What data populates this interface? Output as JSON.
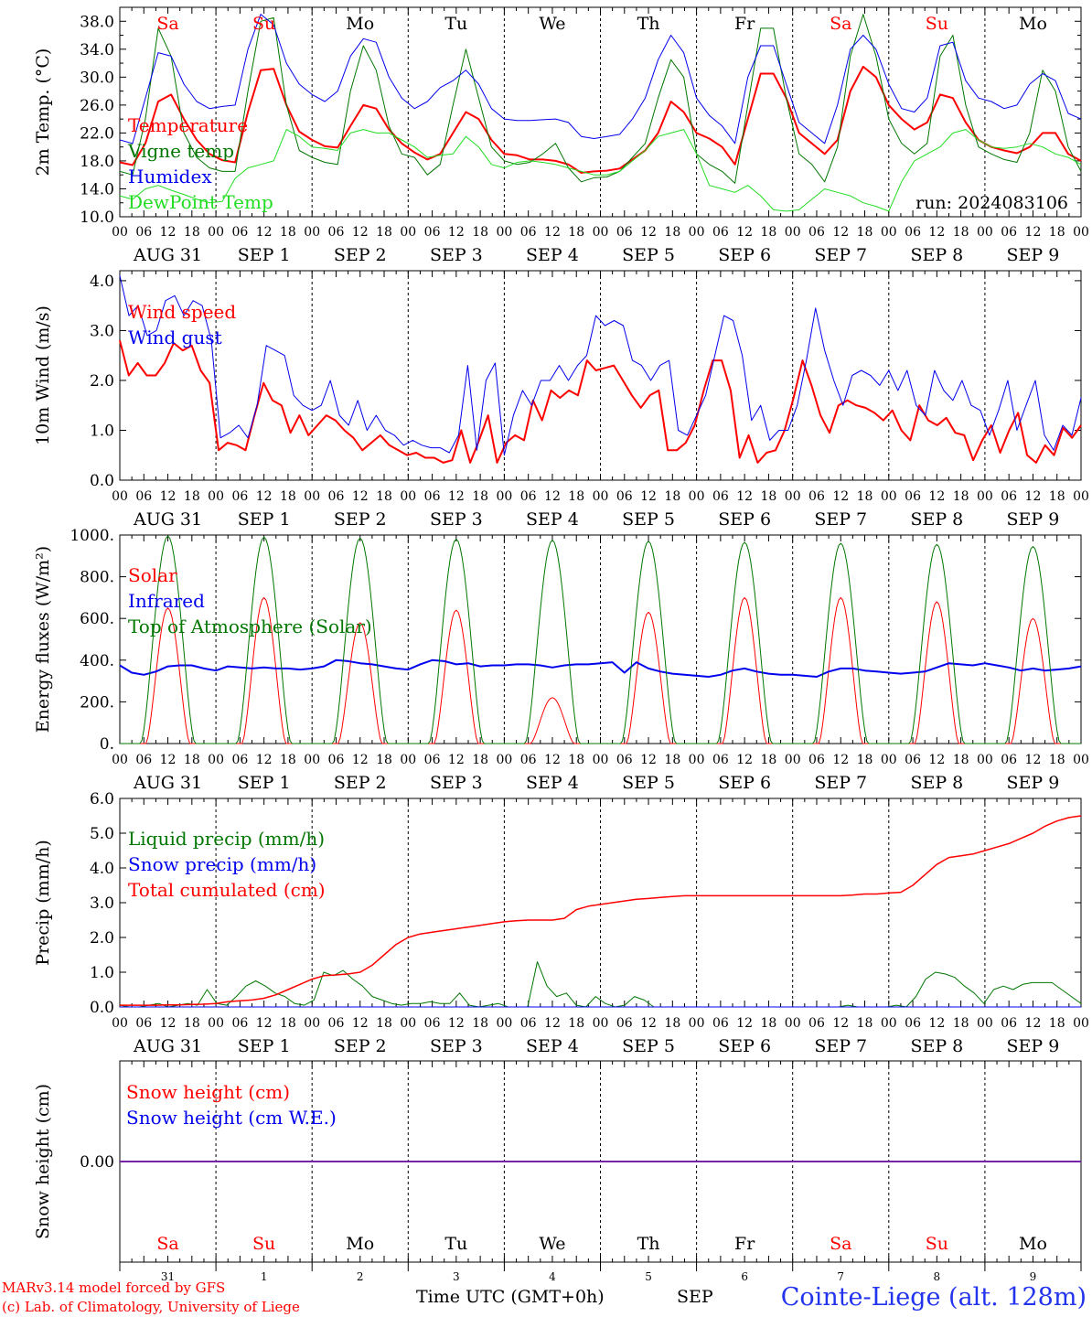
{
  "days": {
    "weekday": [
      "Sa",
      "Su",
      "Mo",
      "Tu",
      "We",
      "Th",
      "Fr",
      "Sa",
      "Su",
      "Mo"
    ],
    "weekend": [
      true,
      true,
      false,
      false,
      false,
      false,
      false,
      true,
      true,
      false
    ],
    "date": [
      "AUG 31",
      "SEP  1",
      "SEP  2",
      "SEP  3",
      "SEP  4",
      "SEP  5",
      "SEP  6",
      "SEP  7",
      "SEP  8",
      "SEP  9"
    ],
    "day_number": [
      "31",
      "1",
      "2",
      "3",
      "4",
      "5",
      "6",
      "7",
      "8",
      "9"
    ]
  },
  "hour_ticks": [
    "00",
    "06",
    "12",
    "18"
  ],
  "hour_ticks_end": "00",
  "colors": {
    "red": "#ff0000",
    "dark_green": "#007700",
    "blue": "#0000ee",
    "light_green": "#22dd22",
    "purple": "#7722aa",
    "axis": "#000000"
  },
  "chart_data": [
    {
      "id": "temperature",
      "type": "line",
      "ylabel": "2m Temp. (°C)",
      "ylim": [
        10,
        40
      ],
      "yticks": [
        "10.0",
        "14.0",
        "18.0",
        "22.0",
        "26.0",
        "30.0",
        "34.0",
        "38.0"
      ],
      "yticks_values": [
        10,
        14,
        18,
        22,
        26,
        30,
        34,
        38
      ],
      "annotation": "run: 2024083106",
      "legend_placement": "top-left",
      "x_step_hours": 3,
      "series": [
        {
          "name": "Temperature",
          "color": "#ff0000",
          "width": 2,
          "values": [
            17.8,
            17.4,
            20.5,
            26.5,
            27.5,
            24.0,
            21.0,
            19.0,
            18.1,
            17.8,
            25.0,
            31.0,
            31.2,
            26.0,
            22.2,
            21.0,
            20.1,
            19.9,
            23.0,
            26.0,
            25.5,
            22.5,
            20.5,
            19.2,
            18.2,
            19.0,
            22.0,
            25.0,
            24.0,
            21.0,
            19.0,
            18.8,
            18.2,
            18.2,
            18.0,
            17.5,
            16.3,
            16.5,
            16.6,
            16.9,
            18.2,
            19.5,
            22.0,
            26.5,
            25.0,
            22.0,
            21.2,
            20.0,
            17.5,
            24.0,
            30.5,
            30.5,
            27.0,
            22.0,
            20.5,
            19.0,
            21.0,
            28.0,
            31.5,
            30.0,
            26.0,
            24.0,
            22.5,
            23.5,
            27.5,
            27.0,
            23.5,
            21.0,
            20.0,
            19.5,
            19.1,
            20.0,
            22.0,
            22.0,
            19.0,
            18.0
          ]
        },
        {
          "name": "Vigne temp",
          "color": "#007700",
          "width": 1,
          "values": [
            16.5,
            16.0,
            24.0,
            37.0,
            33.0,
            22.0,
            18.5,
            17.0,
            16.5,
            16.5,
            28.0,
            38.0,
            38.5,
            26.0,
            19.5,
            18.5,
            17.8,
            17.5,
            28.0,
            34.5,
            31.0,
            23.0,
            19.0,
            18.5,
            16.0,
            17.5,
            26.0,
            34.0,
            27.0,
            20.0,
            18.0,
            17.5,
            17.8,
            19.0,
            20.5,
            17.0,
            15.0,
            15.6,
            15.7,
            16.5,
            18.5,
            20.5,
            27.0,
            32.5,
            30.0,
            19.0,
            17.5,
            16.5,
            14.8,
            26.0,
            37.0,
            37.0,
            27.0,
            19.0,
            17.5,
            15.0,
            20.0,
            33.0,
            39.0,
            33.0,
            24.0,
            20.5,
            19.0,
            20.5,
            33.0,
            36.0,
            26.0,
            20.0,
            19.0,
            18.2,
            17.8,
            22.0,
            31.0,
            28.0,
            20.0,
            16.5
          ]
        },
        {
          "name": "Humidex",
          "color": "#0000ee",
          "width": 1,
          "values": [
            21.0,
            20.5,
            27.0,
            33.5,
            33.0,
            29.0,
            26.5,
            25.5,
            25.8,
            26.0,
            34.0,
            39.0,
            37.5,
            32.0,
            29.0,
            27.5,
            26.5,
            28.0,
            33.0,
            35.5,
            35.0,
            30.0,
            27.0,
            25.5,
            26.5,
            28.5,
            29.5,
            31.0,
            29.0,
            25.5,
            24.0,
            23.8,
            23.8,
            23.9,
            24.0,
            23.5,
            21.5,
            21.2,
            21.5,
            21.8,
            24.0,
            27.0,
            32.5,
            36.0,
            33.5,
            27.0,
            24.5,
            23.0,
            20.5,
            30.0,
            34.5,
            34.5,
            29.0,
            23.5,
            22.0,
            20.5,
            26.0,
            34.0,
            36.0,
            34.0,
            29.0,
            25.5,
            25.0,
            27.0,
            34.5,
            35.0,
            29.5,
            27.0,
            26.5,
            25.5,
            26.0,
            29.0,
            30.5,
            29.5,
            24.8,
            24.0
          ]
        },
        {
          "name": "DewPoint Temp",
          "color": "#22dd22",
          "width": 1,
          "values": [
            13.0,
            12.5,
            14.0,
            14.5,
            13.8,
            13.2,
            12.5,
            12.0,
            12.2,
            15.5,
            17.0,
            17.5,
            18.0,
            22.5,
            21.5,
            20.0,
            19.8,
            19.5,
            22.0,
            22.5,
            22.0,
            22.0,
            21.0,
            20.0,
            18.5,
            18.8,
            19.0,
            21.5,
            20.0,
            17.5,
            17.0,
            17.8,
            18.0,
            17.8,
            17.5,
            17.0,
            16.5,
            16.0,
            16.0,
            16.5,
            18.0,
            19.5,
            21.5,
            22.0,
            22.5,
            19.0,
            14.5,
            14.0,
            13.5,
            14.5,
            13.0,
            11.0,
            10.8,
            11.0,
            12.5,
            14.0,
            13.5,
            13.0,
            12.0,
            11.5,
            10.8,
            15.0,
            18.0,
            19.0,
            20.0,
            22.0,
            22.5,
            21.0,
            20.0,
            19.8,
            20.0,
            20.5,
            20.0,
            19.0,
            18.5,
            17.5
          ]
        }
      ]
    },
    {
      "id": "wind",
      "type": "line",
      "ylabel": "10m Wind (m/s)",
      "ylim": [
        0,
        4.2
      ],
      "yticks": [
        "0.0",
        "1.0",
        "2.0",
        "3.0",
        "4.0"
      ],
      "yticks_values": [
        0,
        1,
        2,
        3,
        4
      ],
      "legend_placement": "top-left",
      "x_step_hours": 3,
      "series": [
        {
          "name": "Wind speed",
          "color": "#ff0000",
          "width": 2,
          "values": [
            2.8,
            2.1,
            2.35,
            2.1,
            2.1,
            2.35,
            2.75,
            2.6,
            2.7,
            2.2,
            1.95,
            0.6,
            0.75,
            0.7,
            0.6,
            1.3,
            1.95,
            1.6,
            1.5,
            0.95,
            1.3,
            0.9,
            1.1,
            1.3,
            1.2,
            1.0,
            0.85,
            0.6,
            0.75,
            0.9,
            0.7,
            0.6,
            0.5,
            0.55,
            0.45,
            0.45,
            0.35,
            0.4,
            1.0,
            0.35,
            0.8,
            1.3,
            0.35,
            0.75,
            0.9,
            0.8,
            1.6,
            1.2,
            1.8,
            1.65,
            1.8,
            1.7,
            2.4,
            2.2,
            2.25,
            2.3,
            2.0,
            1.7,
            1.45,
            1.7,
            1.8,
            0.6,
            0.6,
            0.75,
            1.1,
            1.8,
            2.4,
            2.4,
            1.8,
            0.45,
            0.9,
            0.35,
            0.55,
            0.6,
            1.0,
            1.65,
            2.4,
            1.9,
            1.3,
            0.95,
            1.5,
            1.6,
            1.5,
            1.45,
            1.35,
            1.2,
            1.4,
            1.0,
            0.8,
            1.5,
            1.2,
            1.1,
            1.25,
            0.95,
            0.9,
            0.4,
            0.8,
            1.1,
            0.55,
            1.0,
            1.35,
            0.5,
            0.35,
            0.7,
            0.5,
            1.05,
            0.85,
            1.1
          ]
        },
        {
          "name": "Wind gust",
          "color": "#0000ee",
          "width": 1,
          "values": [
            4.1,
            3.3,
            3.5,
            2.9,
            3.0,
            3.6,
            3.7,
            3.3,
            3.6,
            3.5,
            2.8,
            0.85,
            0.95,
            1.1,
            0.85,
            1.5,
            2.7,
            2.6,
            2.5,
            1.7,
            1.5,
            1.4,
            1.5,
            2.0,
            1.3,
            1.1,
            1.6,
            1.0,
            1.3,
            1.0,
            0.9,
            0.7,
            0.8,
            0.7,
            0.65,
            0.65,
            0.55,
            0.9,
            2.3,
            0.6,
            2.0,
            2.35,
            0.5,
            1.3,
            1.8,
            1.5,
            2.0,
            2.0,
            2.3,
            2.0,
            2.3,
            2.5,
            3.3,
            3.1,
            3.2,
            3.1,
            2.4,
            2.3,
            2.0,
            2.3,
            2.4,
            1.0,
            0.9,
            1.3,
            1.7,
            2.5,
            3.3,
            3.2,
            2.5,
            1.2,
            1.5,
            0.8,
            1.0,
            1.0,
            1.5,
            2.4,
            3.45,
            2.6,
            2.0,
            1.5,
            2.1,
            2.2,
            2.1,
            1.9,
            2.2,
            1.8,
            2.2,
            1.5,
            1.3,
            2.2,
            1.8,
            1.6,
            2.0,
            1.5,
            1.4,
            0.9,
            1.4,
            2.0,
            1.0,
            1.5,
            2.0,
            0.9,
            0.6,
            1.1,
            0.9,
            1.65
          ]
        }
      ]
    },
    {
      "id": "energy",
      "type": "line",
      "ylabel": "Energy fluxes (W/m²)",
      "ylim": [
        0,
        1000
      ],
      "yticks": [
        "0.",
        "200.",
        "400.",
        "600.",
        "800.",
        "1000."
      ],
      "yticks_values": [
        0,
        200,
        400,
        600,
        800,
        1000
      ],
      "legend_placement": "top-left",
      "x_step_hours": 3,
      "series": [
        {
          "name": "Solar",
          "color": "#ff0000",
          "width": 1,
          "daily_peak": [
            650,
            700,
            580,
            640,
            220,
            630,
            700,
            700,
            680,
            600
          ]
        },
        {
          "name": "Infrared",
          "color": "#0000ee",
          "width": 2,
          "values": [
            375,
            340,
            330,
            345,
            370,
            375,
            375,
            360,
            350,
            370,
            365,
            360,
            365,
            360,
            360,
            355,
            360,
            370,
            400,
            395,
            385,
            380,
            370,
            360,
            355,
            380,
            400,
            395,
            380,
            385,
            370,
            375,
            375,
            380,
            380,
            375,
            365,
            375,
            380,
            380,
            385,
            390,
            340,
            390,
            360,
            345,
            335,
            330,
            325,
            320,
            330,
            350,
            360,
            345,
            335,
            330,
            330,
            325,
            320,
            345,
            360,
            360,
            350,
            345,
            340,
            335,
            340,
            345,
            365,
            385,
            380,
            375,
            385,
            375,
            365,
            350,
            360,
            350,
            355,
            360,
            370
          ]
        },
        {
          "name": "Top of Atmosphere (Solar)",
          "color": "#007700",
          "width": 1,
          "daily_peak": [
            995,
            990,
            985,
            980,
            975,
            970,
            965,
            960,
            955,
            945
          ]
        }
      ]
    },
    {
      "id": "precip",
      "type": "line",
      "ylabel": "Precip (mm/h)",
      "ylim": [
        0,
        6
      ],
      "yticks": [
        "0.0",
        "1.0",
        "2.0",
        "3.0",
        "4.0",
        "5.0",
        "6.0"
      ],
      "yticks_values": [
        0,
        1,
        2,
        3,
        4,
        5,
        6
      ],
      "legend_placement": "top-left",
      "x_step_hours": 3,
      "series": [
        {
          "name": "Liquid precip (mm/h)",
          "color": "#007700",
          "width": 1,
          "values": [
            0.05,
            0,
            0,
            0.05,
            0.1,
            0,
            0.05,
            0.1,
            0.05,
            0.5,
            0.1,
            0.05,
            0.3,
            0.6,
            0.75,
            0.6,
            0.4,
            0.3,
            0.1,
            0.05,
            0.2,
            1.0,
            0.9,
            1.05,
            0.8,
            0.6,
            0.3,
            0.2,
            0.1,
            0.05,
            0.1,
            0.1,
            0.15,
            0.1,
            0.1,
            0.4,
            0.05,
            0,
            0.05,
            0.1,
            0,
            0,
            0,
            1.3,
            0.6,
            0.3,
            0.4,
            0.05,
            0,
            0.3,
            0.1,
            0,
            0.05,
            0.3,
            0.2,
            0,
            0,
            0,
            0,
            0,
            0,
            0,
            0,
            0,
            0,
            0,
            0,
            0,
            0,
            0,
            0,
            0,
            0,
            0,
            0,
            0.05,
            0,
            0,
            0,
            0,
            0.05,
            0,
            0.3,
            0.8,
            1.0,
            0.95,
            0.85,
            0.6,
            0.4,
            0.1,
            0.5,
            0.6,
            0.5,
            0.65,
            0.7,
            0.7,
            0.7,
            0.5,
            0.3,
            0.1
          ]
        },
        {
          "name": "Snow precip (mm/h)",
          "color": "#0000ee",
          "width": 1,
          "values": [
            0,
            0
          ]
        },
        {
          "name": "Total cumulated (cm)",
          "color": "#ff0000",
          "width": 1.5,
          "values": [
            0.05,
            0.05,
            0.05,
            0.05,
            0.06,
            0.06,
            0.07,
            0.08,
            0.1,
            0.15,
            0.18,
            0.2,
            0.25,
            0.35,
            0.5,
            0.65,
            0.8,
            0.9,
            0.92,
            0.95,
            1.0,
            1.2,
            1.5,
            1.8,
            2.0,
            2.1,
            2.15,
            2.2,
            2.25,
            2.3,
            2.35,
            2.4,
            2.45,
            2.48,
            2.5,
            2.5,
            2.5,
            2.55,
            2.8,
            2.9,
            2.95,
            3.0,
            3.05,
            3.1,
            3.12,
            3.15,
            3.18,
            3.2,
            3.2,
            3.2,
            3.2,
            3.2,
            3.2,
            3.2,
            3.2,
            3.2,
            3.2,
            3.2,
            3.2,
            3.2,
            3.2,
            3.22,
            3.25,
            3.25,
            3.28,
            3.3,
            3.5,
            3.8,
            4.1,
            4.3,
            4.35,
            4.4,
            4.5,
            4.6,
            4.7,
            4.85,
            5.0,
            5.2,
            5.35,
            5.45,
            5.5
          ]
        }
      ]
    },
    {
      "id": "snow",
      "type": "line",
      "ylabel": "Snow height (cm)",
      "ylim": [
        -1,
        1
      ],
      "yticks": [
        "0.00"
      ],
      "yticks_values": [
        0
      ],
      "legend_placement": "top-left",
      "x_step_hours": 3,
      "series": [
        {
          "name": "Snow height (cm)",
          "color": "#ff0000",
          "width": 1,
          "values": [
            0,
            0
          ]
        },
        {
          "name": "Snow height (cm W.E.)",
          "color": "#0000ee",
          "width": 1,
          "values": [
            0,
            0
          ]
        }
      ]
    }
  ],
  "footer": {
    "model": "MARv3.14 model forced by GFS",
    "copyright": "(c) Lab. of Climatology, University of Liege",
    "time_label": "Time UTC (GMT+0h)",
    "month": "SEP",
    "station": "Cointe-Liege (alt. 128m)"
  }
}
